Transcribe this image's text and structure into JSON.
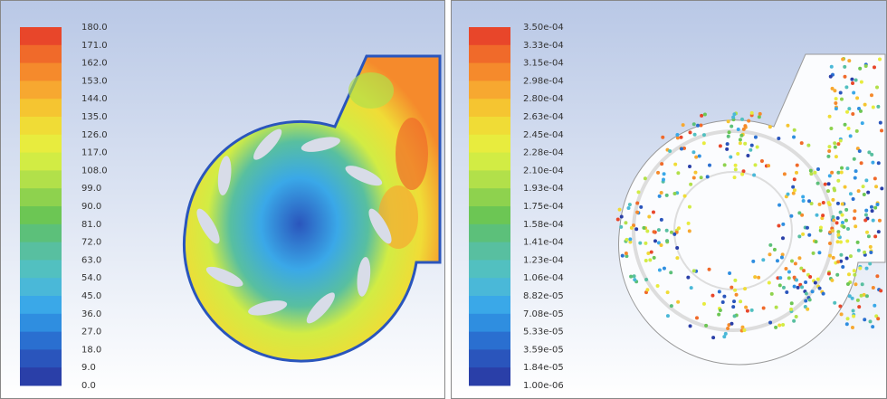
{
  "panels": [
    {
      "legend": {
        "labels": [
          "180.0",
          "171.0",
          "162.0",
          "153.0",
          "144.0",
          "135.0",
          "126.0",
          "117.0",
          "108.0",
          "99.0",
          "90.0",
          "81.0",
          "72.0",
          "63.0",
          "54.0",
          "45.0",
          "36.0",
          "27.0",
          "18.0",
          "9.0",
          "0.0"
        ]
      }
    },
    {
      "legend": {
        "labels": [
          "3.50e-04",
          "3.33e-04",
          "3.15e-04",
          "2.98e-04",
          "2.80e-04",
          "2.63e-04",
          "2.45e-04",
          "2.28e-04",
          "2.10e-04",
          "1.93e-04",
          "1.75e-04",
          "1.58e-04",
          "1.41e-04",
          "1.23e-04",
          "1.06e-04",
          "8.82e-05",
          "7.08e-05",
          "5.33e-05",
          "3.59e-05",
          "1.84e-05",
          "1.00e-06"
        ]
      }
    }
  ]
}
